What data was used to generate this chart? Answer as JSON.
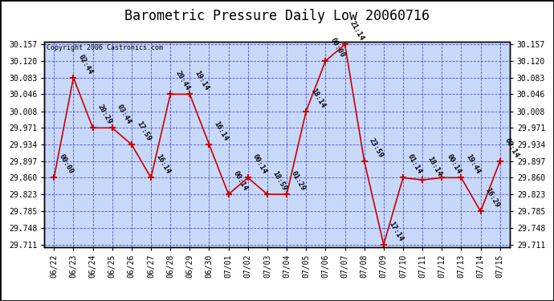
{
  "title": "Barometric Pressure Daily Low 20060716",
  "copyright": "Copyright 2006 Castronics.com",
  "line_color": "#cc0000",
  "marker_color": "#cc0000",
  "plot_bg": "#c8d8f8",
  "fig_bg": "#ffffff",
  "grid_color": "#3333cc",
  "ylim_low": 29.711,
  "ylim_high": 30.157,
  "yticks": [
    29.711,
    29.748,
    29.785,
    29.823,
    29.86,
    29.897,
    29.934,
    29.971,
    30.008,
    30.046,
    30.083,
    30.12,
    30.157
  ],
  "dates": [
    "06/22",
    "06/23",
    "06/24",
    "06/25",
    "06/26",
    "06/27",
    "06/28",
    "06/29",
    "06/30",
    "07/01",
    "07/02",
    "07/03",
    "07/04",
    "07/05",
    "07/06",
    "07/07",
    "07/08",
    "07/09",
    "07/10",
    "07/11",
    "07/12",
    "07/13",
    "07/14",
    "07/15"
  ],
  "values": [
    29.86,
    30.083,
    29.971,
    29.971,
    29.934,
    29.86,
    30.046,
    30.046,
    29.934,
    29.823,
    29.86,
    29.823,
    29.823,
    30.008,
    30.12,
    30.157,
    29.897,
    29.711,
    29.86,
    29.855,
    29.86,
    29.86,
    29.785,
    29.897
  ],
  "labels": [
    "00:00",
    "02:44",
    "20:29",
    "03:44",
    "17:59",
    "16:14",
    "20:44",
    "19:14",
    "16:14",
    "00:14",
    "00:14",
    "18:59",
    "01:29",
    "18:14",
    "00:00",
    "21:14",
    "23:59",
    "17:14",
    "01:14",
    "18:14",
    "00:14",
    "19:44",
    "16:29",
    "00:14"
  ],
  "title_fontsize": 12,
  "axis_fontsize": 7,
  "label_fontsize": 6.5
}
